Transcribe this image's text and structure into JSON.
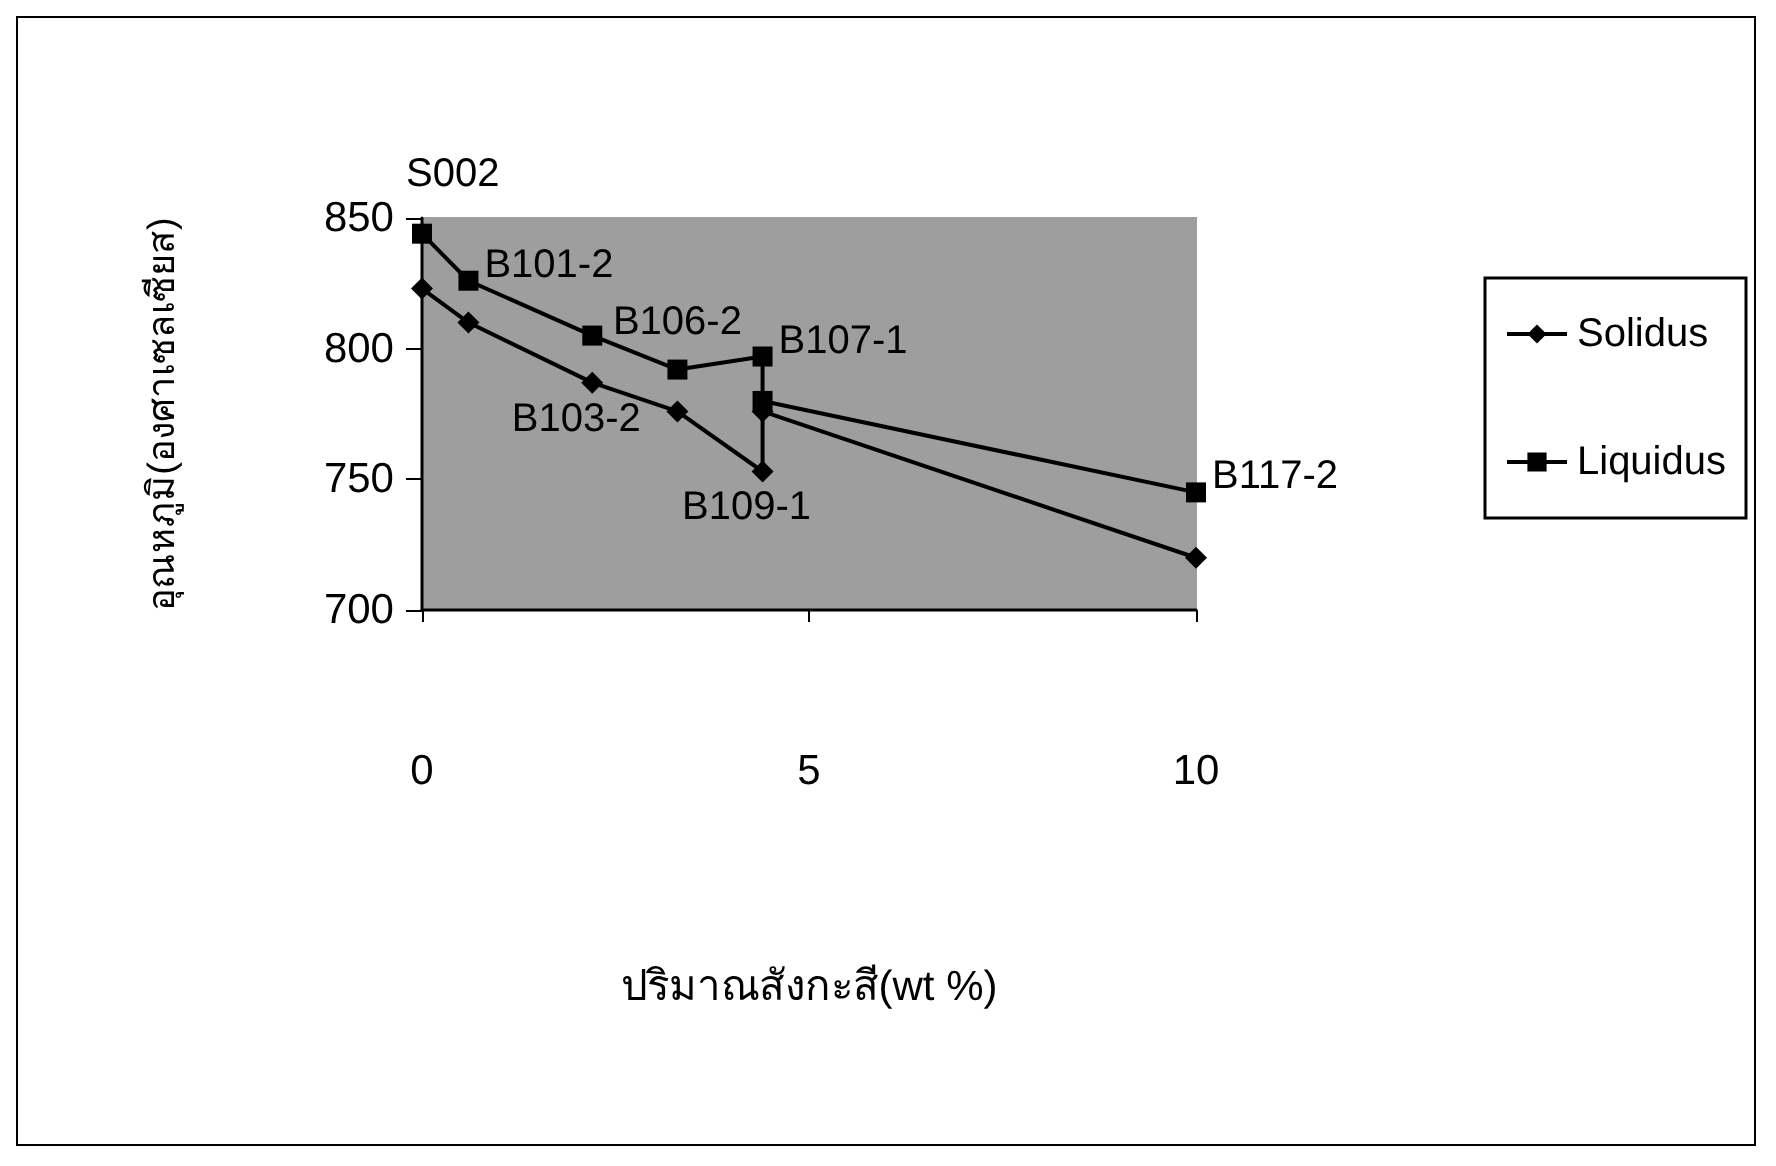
{
  "chart_data": {
    "type": "line",
    "xlabel": "ปริมาณสังกะสี(wt %)",
    "ylabel": "อุณหภูมิ(องศาเซลเซียส)",
    "xlim": [
      0,
      10
    ],
    "xticks": [
      0,
      5,
      10
    ],
    "ylim": [
      700,
      850
    ],
    "yticks": [
      700,
      750,
      800,
      850
    ],
    "grid": false,
    "legend": "right",
    "series": [
      {
        "name": "Solidus",
        "color": "#000000",
        "marker": "diamond",
        "x": [
          0,
          0.6,
          2.2,
          3.3,
          4.4,
          4.4,
          10
        ],
        "values": [
          823,
          810,
          787,
          776,
          753,
          776,
          720
        ]
      },
      {
        "name": "Liquidus",
        "color": "#000000",
        "marker": "square",
        "x": [
          0,
          0.6,
          2.2,
          3.3,
          4.4,
          4.4,
          10
        ],
        "values": [
          844,
          826,
          805,
          792,
          797,
          780,
          745
        ]
      }
    ],
    "annotations": [
      {
        "text": "S002",
        "x": 0,
        "y": 844
      },
      {
        "text": "B101-2",
        "x": 0.6,
        "y": 826
      },
      {
        "text": "B106-2",
        "x": 3.3,
        "y": 792
      },
      {
        "text": "B107-1",
        "x": 4.4,
        "y": 797
      },
      {
        "text": "B103-2",
        "x": 2.2,
        "y": 787
      },
      {
        "text": "B109-1",
        "x": 4.4,
        "y": 753
      },
      {
        "text": "B117-2",
        "x": 10,
        "y": 745
      }
    ]
  }
}
